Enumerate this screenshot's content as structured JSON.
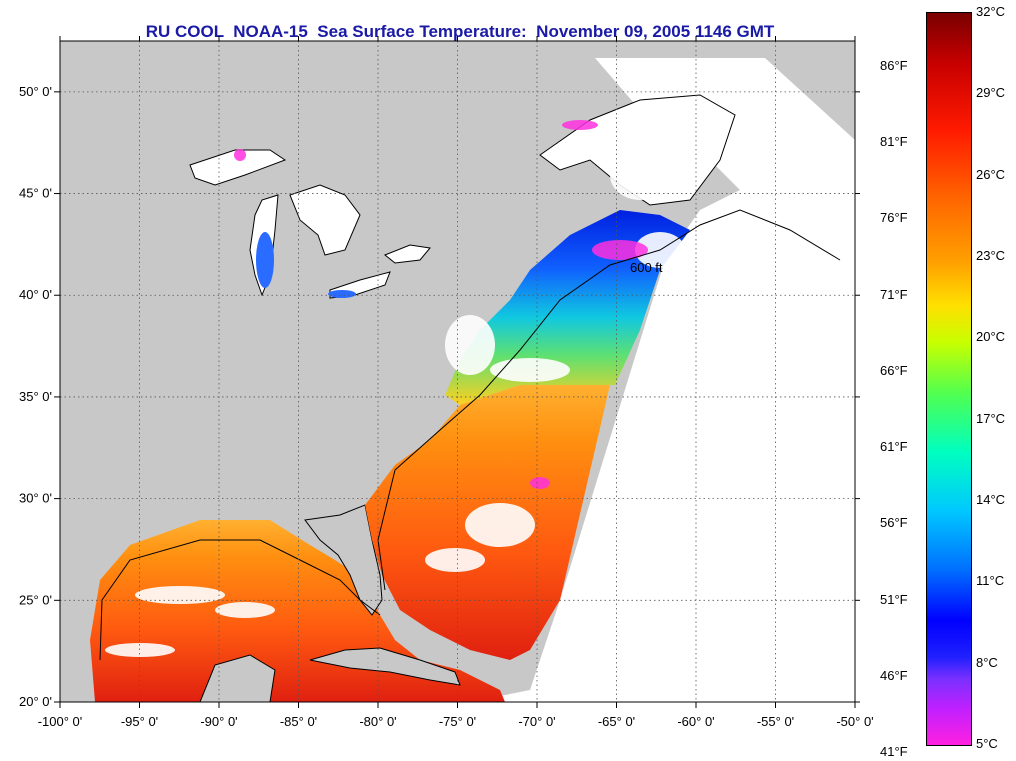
{
  "title": "RU COOL  NOAA-15  Sea Surface Temperature:  November 09, 2005 1146 GMT",
  "map": {
    "lon_min": -100,
    "lon_max": -50,
    "lat_min": 20,
    "lat_max": 52.5,
    "x_ticks": [
      "-100° 0'",
      "-95° 0'",
      "-90° 0'",
      "-85° 0'",
      "-80° 0'",
      "-75° 0'",
      "-70° 0'",
      "-65° 0'",
      "-60° 0'",
      "-55° 0'",
      "-50° 0'"
    ],
    "y_ticks": [
      "50° 0'",
      "45° 0'",
      "40° 0'",
      "35° 0'",
      "30° 0'",
      "25° 0'",
      "20° 0'"
    ],
    "contour_label": "600 ft",
    "colors": {
      "land": "#c8c8c8",
      "ocean_warm": "#ff6a1a",
      "ocean_cool": "#1a3cff",
      "cloud": "#ffffff",
      "coast": "#000000"
    }
  },
  "colorbar": {
    "celsius": [
      "32°C",
      "29°C",
      "26°C",
      "23°C",
      "20°C",
      "17°C",
      "14°C",
      "11°C",
      "8°C",
      "5°C"
    ],
    "fahrenheit": [
      "86°F",
      "81°F",
      "76°F",
      "71°F",
      "66°F",
      "61°F",
      "56°F",
      "51°F",
      "46°F",
      "41°F"
    ]
  }
}
